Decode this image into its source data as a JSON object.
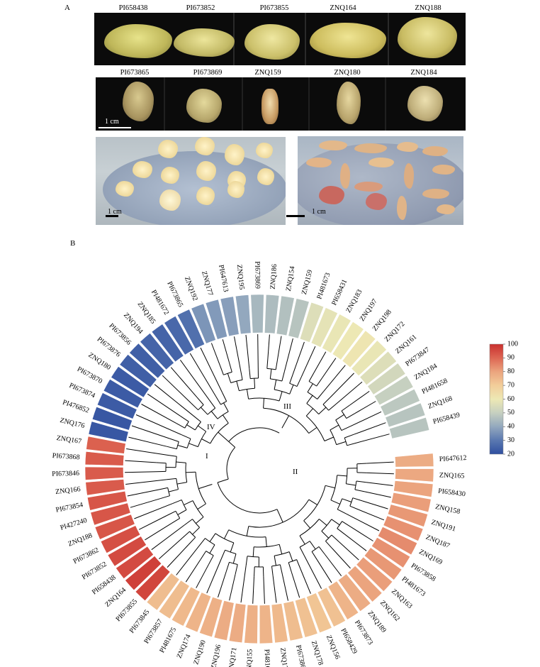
{
  "panel_a": {
    "label": "A",
    "row1_labels": [
      "PI658438",
      "PI673852",
      "PI673855",
      "ZNQ164",
      "ZNQ188"
    ],
    "row2_labels": [
      "PI673865",
      "PI673869",
      "ZNQ159",
      "ZNQ180",
      "ZNQ184"
    ],
    "scale_row2": "1 cm",
    "scale_dish_left": "1 cm",
    "scale_dish_right": "1 cm"
  },
  "panel_b": {
    "label": "B",
    "cluster_labels": [
      "I",
      "II",
      "III",
      "IV"
    ],
    "colorbar": {
      "ticks": [
        "100",
        "90",
        "80",
        "70",
        "60",
        "50",
        "40",
        "30",
        "20"
      ],
      "min": 20,
      "max": 100,
      "colors": [
        "#2f4fa0",
        "#5a78b0",
        "#93a8be",
        "#c6d0c0",
        "#ede8b4",
        "#f2cd9a",
        "#eba47e",
        "#dd6653",
        "#c9302e"
      ]
    }
  },
  "chart_data": {
    "type": "circular-dendrogram-heatmap",
    "leaves": [
      {
        "label": "PI647612",
        "value": 78
      },
      {
        "label": "ZNQ165",
        "value": 79
      },
      {
        "label": "PI658430",
        "value": 80
      },
      {
        "label": "ZNQ158",
        "value": 81
      },
      {
        "label": "ZNQ191",
        "value": 82
      },
      {
        "label": "ZNQ187",
        "value": 83
      },
      {
        "label": "ZNQ169",
        "value": 84
      },
      {
        "label": "PI673858",
        "value": 83
      },
      {
        "label": "PI481673",
        "value": 82
      },
      {
        "label": "ZNQ163",
        "value": 81
      },
      {
        "label": "ZNQ162",
        "value": 80
      },
      {
        "label": "ZNQ189",
        "value": 78
      },
      {
        "label": "PI673873",
        "value": 76
      },
      {
        "label": "PI658429",
        "value": 73
      },
      {
        "label": "ZNQ156",
        "value": 72
      },
      {
        "label": "ZNQ178",
        "value": 73
      },
      {
        "label": "PI673863",
        "value": 74
      },
      {
        "label": "ZNQ170",
        "value": 75
      },
      {
        "label": "PI481666",
        "value": 76
      },
      {
        "label": "ZNQ155",
        "value": 77
      },
      {
        "label": "ZNQ171",
        "value": 78
      },
      {
        "label": "ZNQ196",
        "value": 78
      },
      {
        "label": "ZNQ190",
        "value": 77
      },
      {
        "label": "ZNQ174",
        "value": 76
      },
      {
        "label": "PI481675",
        "value": 75
      },
      {
        "label": "PI673857",
        "value": 74
      },
      {
        "label": "PI673845",
        "value": 74
      },
      {
        "label": "PI673855",
        "value": 96
      },
      {
        "label": "ZNQ164",
        "value": 97
      },
      {
        "label": "PI658438",
        "value": 95
      },
      {
        "label": "PI673852",
        "value": 95
      },
      {
        "label": "PI673862",
        "value": 94
      },
      {
        "label": "ZNQ188",
        "value": 93
      },
      {
        "label": "PI427240",
        "value": 93
      },
      {
        "label": "PI673854",
        "value": 93
      },
      {
        "label": "ZNQ166",
        "value": 92
      },
      {
        "label": "PI673846",
        "value": 92
      },
      {
        "label": "PI673868",
        "value": 92
      },
      {
        "label": "ZNQ167",
        "value": 91
      },
      {
        "label": "ZNQ176",
        "value": 22
      },
      {
        "label": "PI476852",
        "value": 22
      },
      {
        "label": "PI673874",
        "value": 23
      },
      {
        "label": "PI673870",
        "value": 23
      },
      {
        "label": "ZNQ180",
        "value": 23
      },
      {
        "label": "PI673876",
        "value": 24
      },
      {
        "label": "PI673856",
        "value": 24
      },
      {
        "label": "ZNQ194",
        "value": 25
      },
      {
        "label": "ZNQ185",
        "value": 25
      },
      {
        "label": "PI481672",
        "value": 26
      },
      {
        "label": "PI673865",
        "value": 28
      },
      {
        "label": "ZNQ192",
        "value": 36
      },
      {
        "label": "ZNQ177",
        "value": 37
      },
      {
        "label": "PI647613",
        "value": 38
      },
      {
        "label": "ZNQ195",
        "value": 40
      },
      {
        "label": "PI673869",
        "value": 44
      },
      {
        "label": "ZNQ186",
        "value": 45
      },
      {
        "label": "ZNQ154",
        "value": 46
      },
      {
        "label": "ZNQ159",
        "value": 47
      },
      {
        "label": "PI481673",
        "value": 56
      },
      {
        "label": "PI658431",
        "value": 58
      },
      {
        "label": "ZNQ183",
        "value": 59
      },
      {
        "label": "ZNQ197",
        "value": 60
      },
      {
        "label": "ZNQ198",
        "value": 61
      },
      {
        "label": "ZNQ172",
        "value": 59
      },
      {
        "label": "ZNQ161",
        "value": 56
      },
      {
        "label": "PI673847",
        "value": 53
      },
      {
        "label": "ZNQ184",
        "value": 50
      },
      {
        "label": "PI481658",
        "value": 48
      },
      {
        "label": "ZNQ168",
        "value": 47
      },
      {
        "label": "PI658439",
        "value": 47
      }
    ]
  }
}
